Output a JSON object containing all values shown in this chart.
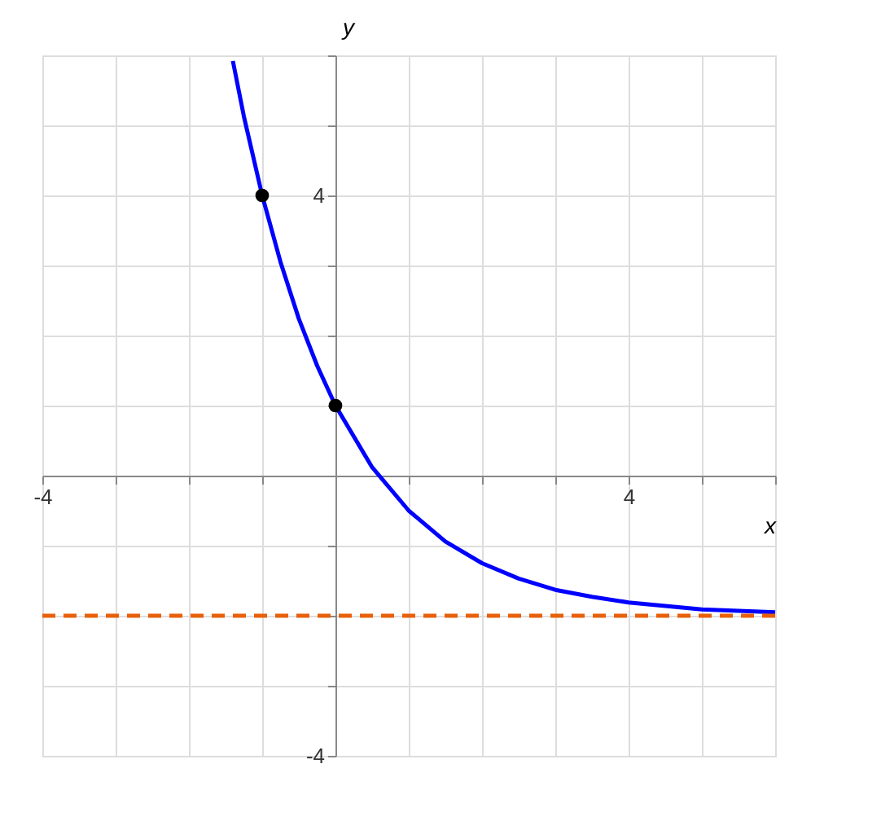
{
  "chart_data": {
    "type": "line",
    "xlabel": "x",
    "ylabel": "y",
    "xlim": [
      -4,
      6
    ],
    "ylim": [
      -4,
      6
    ],
    "xticks": [
      -4,
      {
        "value": -3,
        "label": null
      },
      {
        "value": -2,
        "label": null
      },
      {
        "value": -1,
        "label": null
      },
      {
        "value": 0,
        "label": null
      },
      {
        "value": 1,
        "label": null
      },
      {
        "value": 2,
        "label": null
      },
      {
        "value": 3,
        "label": null
      },
      4,
      {
        "value": 5,
        "label": null
      },
      {
        "value": 6,
        "label": null
      }
    ],
    "yticks": [
      -4,
      {
        "value": -3,
        "label": null
      },
      {
        "value": -2,
        "label": null
      },
      {
        "value": -1,
        "label": null
      },
      {
        "value": 0,
        "label": null
      },
      {
        "value": 1,
        "label": null
      },
      {
        "value": 2,
        "label": null
      },
      {
        "value": 3,
        "label": null
      },
      4,
      {
        "value": 5,
        "label": null
      },
      {
        "value": 6,
        "label": null
      }
    ],
    "grid": true,
    "series": [
      {
        "type": "line",
        "color": "#0000ff",
        "marker": "none",
        "x": [
          -1.4,
          -1.25,
          -1,
          -0.75,
          -0.5,
          -0.25,
          0,
          0.5,
          1,
          1.5,
          2,
          2.5,
          3,
          3.5,
          4,
          5,
          6
        ],
        "values": [
          5.92,
          5.13,
          4,
          3.05,
          2.24,
          1.57,
          1,
          0.12,
          -0.5,
          -0.94,
          -1.25,
          -1.47,
          -1.63,
          -1.73,
          -1.81,
          -1.91,
          -1.95
        ]
      },
      {
        "type": "scatter",
        "color": "#000000",
        "marker": "circle",
        "x": [
          -1,
          0
        ],
        "values": [
          4,
          1
        ]
      }
    ],
    "ref_lines": [
      {
        "axis": "y",
        "value": -2,
        "label": null,
        "color": "#e8600a",
        "line_style": "dashed"
      }
    ]
  }
}
